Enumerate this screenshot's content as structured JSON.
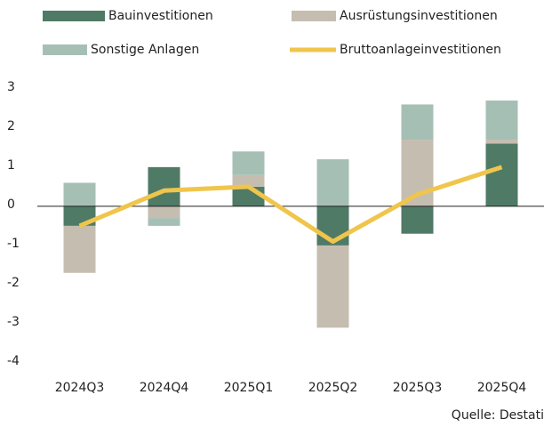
{
  "chart_data": {
    "type": "bar",
    "stacked": true,
    "categories": [
      "2024Q3",
      "2024Q4",
      "2025Q1",
      "2025Q2",
      "2025Q3",
      "2025Q4"
    ],
    "series": [
      {
        "name": "Bauinvestitionen",
        "color": "#4f7a66",
        "values": [
          -0.5,
          1.0,
          0.5,
          -1.0,
          -0.7,
          1.6
        ]
      },
      {
        "name": "Ausrüstungsinvestitionen",
        "color": "#c5bdb0",
        "values": [
          -1.2,
          -0.3,
          0.3,
          -2.1,
          1.7,
          0.1
        ]
      },
      {
        "name": "Sonstige Anlagen",
        "color": "#a6bfb5",
        "values": [
          0.6,
          -0.2,
          0.6,
          1.2,
          0.9,
          1.0
        ]
      },
      {
        "name": "Bruttoanlageinvestitionen",
        "type": "line",
        "color": "#f0c54c",
        "values": [
          -0.5,
          0.4,
          0.5,
          -0.9,
          0.3,
          1.0
        ]
      }
    ],
    "ylim": [
      -4,
      3.2
    ],
    "yticks": [
      -4,
      -3,
      -2,
      -1,
      0,
      1,
      2,
      3
    ],
    "source": "Quelle: Destati"
  }
}
